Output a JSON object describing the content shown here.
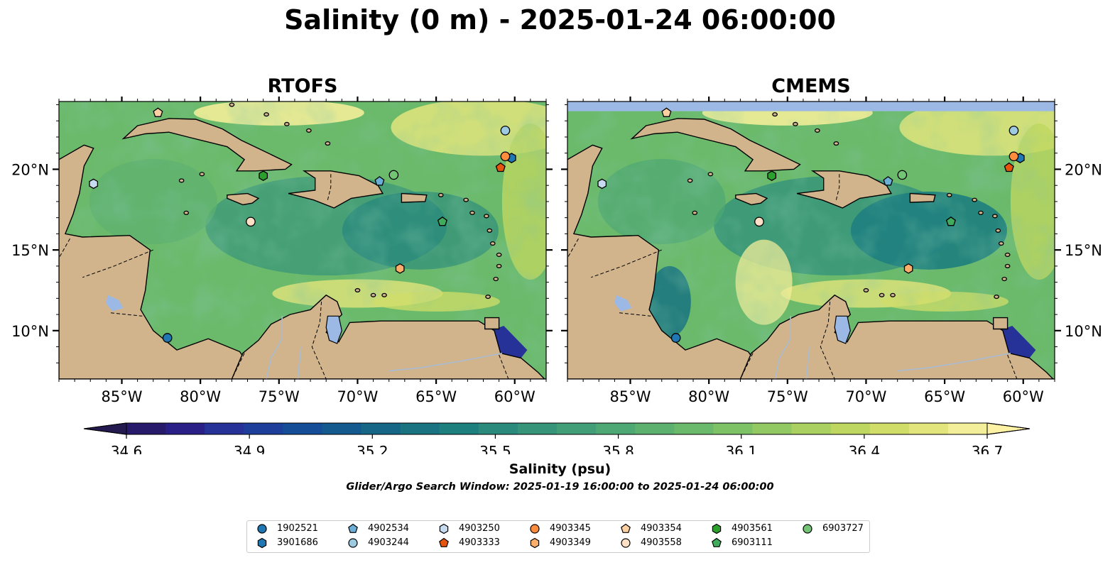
{
  "figure": {
    "title": "Salinity (0 m) - 2025-01-24 06:00:00",
    "colorbar_label": "Salinity (psu)",
    "search_window": "Glider/Argo Search Window: 2025-01-19 16:00:00 to 2025-01-24 06:00:00"
  },
  "panels": [
    {
      "title": "RTOFS",
      "extent": {
        "lon": [
          -89,
          -58
        ],
        "lat": [
          7,
          24.2
        ]
      },
      "no_data_band_lat": null
    },
    {
      "title": "CMEMS",
      "extent": {
        "lon": [
          -89,
          -58
        ],
        "lat": [
          7,
          24.2
        ]
      },
      "no_data_band_lat": 23.6
    }
  ],
  "axes": {
    "x_ticks": [
      {
        "lon": -85,
        "label": "85°W"
      },
      {
        "lon": -80,
        "label": "80°W"
      },
      {
        "lon": -75,
        "label": "75°W"
      },
      {
        "lon": -70,
        "label": "70°W"
      },
      {
        "lon": -65,
        "label": "65°W"
      },
      {
        "lon": -60,
        "label": "60°W"
      }
    ],
    "y_ticks": [
      {
        "lat": 20,
        "label": "20°N"
      },
      {
        "lat": 15,
        "label": "15°N"
      },
      {
        "lat": 10,
        "label": "10°N"
      }
    ]
  },
  "colorbar": {
    "min": 34.6,
    "max": 36.7,
    "extend": "both",
    "ticks": [
      "34.6",
      "34.9",
      "35.2",
      "35.5",
      "35.8",
      "36.1",
      "36.4",
      "36.7"
    ],
    "colors": [
      "#271a6a",
      "#2a1e87",
      "#273299",
      "#1d3f9b",
      "#164d97",
      "#145a8e",
      "#166787",
      "#197381",
      "#1e7f7f",
      "#2a8a7c",
      "#369479",
      "#429e76",
      "#4ea873",
      "#5cb16f",
      "#6bba6b",
      "#7ec266",
      "#93c962",
      "#a9d060",
      "#bed760",
      "#d0dd68",
      "#e2e57c",
      "#f3ee99"
    ],
    "colors_meta": {
      "under": "#241a50",
      "over": "#fdf1a4",
      "land": "#d2b48c",
      "lakes": "#9cb9e6",
      "rivers": "#a9bcd2"
    }
  },
  "floats": [
    {
      "id": "1902521",
      "marker": "circle",
      "color": "#1f77b4",
      "lon": -82.1,
      "lat": 9.55
    },
    {
      "id": "3901686",
      "marker": "hexagon",
      "color": "#1f77b4",
      "lon": -60.2,
      "lat": 20.7
    },
    {
      "id": "4902534",
      "marker": "pentagon",
      "color": "#6baed6",
      "lon": -68.6,
      "lat": 19.25
    },
    {
      "id": "4903244",
      "marker": "circle",
      "color": "#9ecae1",
      "lon": -60.6,
      "lat": 22.4
    },
    {
      "id": "4903250",
      "marker": "hexagon",
      "color": "#c6dbef",
      "lon": -86.8,
      "lat": 19.1
    },
    {
      "id": "4903333",
      "marker": "pentagon",
      "color": "#e6550d",
      "lon": -60.9,
      "lat": 20.1
    },
    {
      "id": "4903345",
      "marker": "circle",
      "color": "#fd8d3c",
      "lon": -60.6,
      "lat": 20.8
    },
    {
      "id": "4903349",
      "marker": "hexagon",
      "color": "#fdae6b",
      "lon": -67.3,
      "lat": 13.85
    },
    {
      "id": "4903354",
      "marker": "pentagon",
      "color": "#fdd0a2",
      "lon": -82.7,
      "lat": 23.5
    },
    {
      "id": "4903558",
      "marker": "circle",
      "color": "#fde0c5",
      "lon": -76.8,
      "lat": 16.75
    },
    {
      "id": "4903561",
      "marker": "hexagon",
      "color": "#2ca02c",
      "lon": -76.0,
      "lat": 19.6
    },
    {
      "id": "6903111",
      "marker": "pentagon",
      "color": "#41ab5d",
      "lon": -64.6,
      "lat": 16.75
    },
    {
      "id": "6903727",
      "marker": "circle",
      "color": "#74c476",
      "lon": -67.7,
      "lat": 19.65
    }
  ]
}
